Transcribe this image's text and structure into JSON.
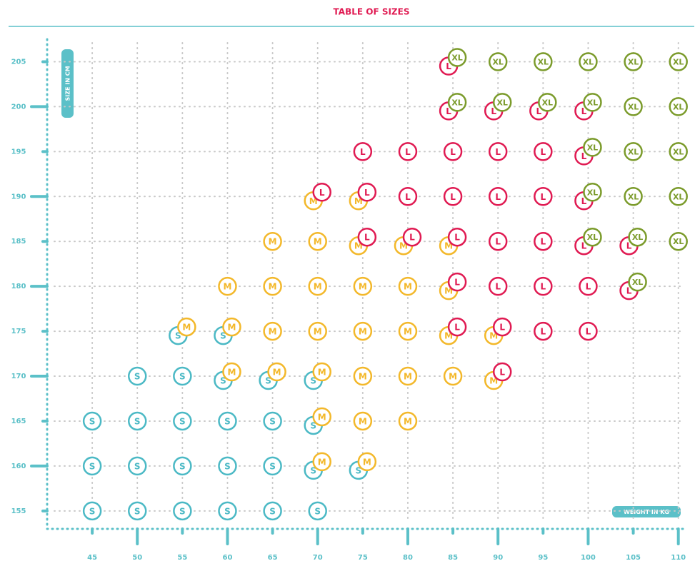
{
  "chart_data": {
    "type": "scatter",
    "title": "TABLE OF SIZES",
    "x_label": "WEIGHT IN KG",
    "y_label": "SIZE IN CM",
    "xlim": [
      40,
      110.5
    ],
    "ylim": [
      153,
      207.5
    ],
    "xticks": [
      45,
      50,
      55,
      60,
      65,
      70,
      75,
      80,
      85,
      90,
      95,
      100,
      105,
      110
    ],
    "yticks": [
      155,
      160,
      165,
      170,
      175,
      180,
      185,
      190,
      195,
      200,
      205
    ],
    "grid": true,
    "series": [
      {
        "name": "S",
        "color": "#4bb9c5",
        "x": [
          55,
          60,
          50,
          55,
          60,
          65,
          70,
          45,
          50,
          55,
          60,
          65,
          70,
          45,
          50,
          55,
          60,
          65,
          70,
          75,
          45,
          50,
          55,
          60,
          65,
          70
        ],
        "y": [
          175,
          175,
          170,
          170,
          170,
          170,
          170,
          165,
          165,
          165,
          165,
          165,
          165,
          160,
          160,
          160,
          160,
          160,
          160,
          160,
          155,
          155,
          155,
          155,
          155,
          155
        ]
      },
      {
        "name": "M",
        "color": "#f3b82a",
        "x": [
          70,
          75,
          65,
          70,
          75,
          80,
          85,
          60,
          65,
          70,
          75,
          80,
          85,
          55,
          60,
          65,
          70,
          75,
          80,
          85,
          90,
          60,
          65,
          70,
          75,
          80,
          85,
          90,
          70,
          75,
          80,
          70,
          75
        ],
        "y": [
          190,
          190,
          185,
          185,
          185,
          185,
          185,
          180,
          180,
          180,
          180,
          180,
          180,
          175,
          175,
          175,
          175,
          175,
          175,
          175,
          175,
          170,
          170,
          170,
          170,
          170,
          170,
          170,
          165,
          165,
          165,
          160,
          160
        ]
      },
      {
        "name": "L",
        "color": "#e01a52",
        "x": [
          85,
          85,
          90,
          95,
          100,
          75,
          80,
          85,
          90,
          95,
          100,
          70,
          75,
          80,
          85,
          90,
          95,
          100,
          75,
          80,
          85,
          90,
          95,
          100,
          105,
          85,
          90,
          95,
          100,
          105,
          85,
          90,
          95,
          100,
          90
        ],
        "y": [
          205,
          200,
          200,
          200,
          200,
          195,
          195,
          195,
          195,
          195,
          195,
          190,
          190,
          190,
          190,
          190,
          190,
          190,
          185,
          185,
          185,
          185,
          185,
          185,
          185,
          180,
          180,
          180,
          180,
          180,
          175,
          175,
          175,
          175,
          170
        ]
      },
      {
        "name": "XL",
        "color": "#7b9b2b",
        "x": [
          85,
          90,
          95,
          100,
          105,
          110,
          85,
          90,
          95,
          100,
          105,
          110,
          100,
          105,
          110,
          100,
          105,
          110,
          100,
          105,
          110,
          105
        ],
        "y": [
          205,
          205,
          205,
          205,
          205,
          205,
          200,
          200,
          200,
          200,
          200,
          200,
          195,
          195,
          195,
          190,
          190,
          190,
          185,
          185,
          185,
          180
        ]
      }
    ]
  }
}
